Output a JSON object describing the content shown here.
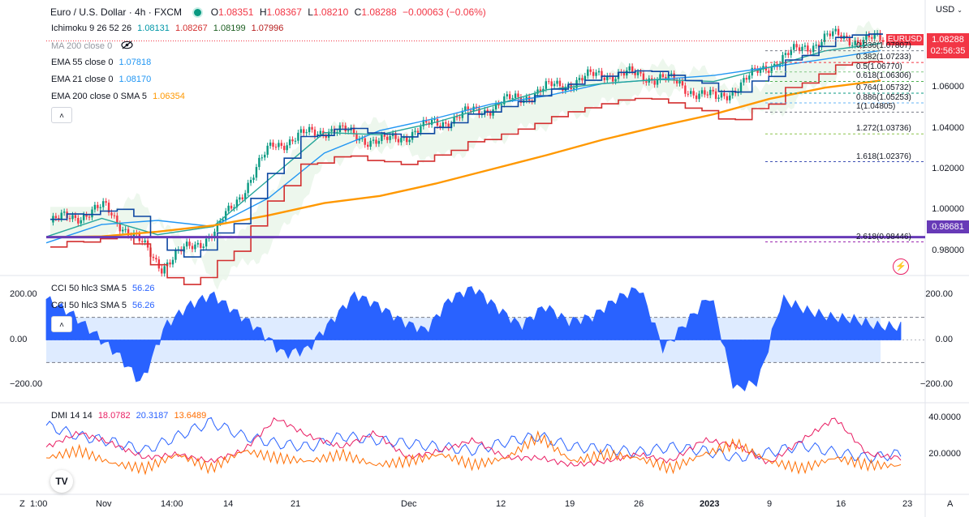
{
  "header": {
    "symbol": "Euro / U.S. Dollar · 4h · FXCM",
    "o_label": "O",
    "o": "1.08351",
    "h_label": "H",
    "h": "1.08367",
    "l_label": "L",
    "l": "1.08210",
    "c_label": "C",
    "c": "1.08288",
    "change": "−0.00063 (−0.06%)",
    "currency": "USD"
  },
  "indicators": {
    "ichimoku": {
      "name": "Ichimoku 9 26 52 26",
      "v1": "1.08131",
      "v2": "1.08267",
      "v3": "1.08199",
      "v4": "1.07996"
    },
    "ma200": {
      "name": "MA 200 close 0"
    },
    "ema55": {
      "name": "EMA 55 close 0",
      "value": "1.07818"
    },
    "ema21": {
      "name": "EMA 21 close 0",
      "value": "1.08170"
    },
    "ema200": {
      "name": "EMA 200 close 0 SMA 5",
      "value": "1.06354"
    },
    "cci_a": {
      "name": "CCI 50 hlc3 SMA 5",
      "value": "56.26"
    },
    "cci_b": {
      "name": "CCI 50 hlc3 SMA 5",
      "value": "56.26"
    },
    "dmi": {
      "name": "DMI 14 14",
      "v1": "18.0782",
      "v2": "20.3187",
      "v3": "13.6489"
    }
  },
  "price_axis": {
    "labels": [
      "1.06000",
      "1.04000",
      "1.02000",
      "1.00000",
      "0.98000"
    ],
    "current": "1.08288",
    "timer": "02:56:35",
    "symbol_tag": "EURUSD",
    "hline": "0.98681"
  },
  "cci_axis": {
    "labels": [
      "200.00",
      "0.00",
      "−200.00"
    ]
  },
  "dmi_axis": {
    "labels": [
      "40.0000",
      "20.0000"
    ]
  },
  "fib_levels": [
    {
      "label": "0.236(1.07807)"
    },
    {
      "label": "0.382(1.07233)"
    },
    {
      "label": "0.5(1.06770)"
    },
    {
      "label": "0.618(1.06306)"
    },
    {
      "label": "0.764(1.05732)"
    },
    {
      "label": "0.886(1.05253)"
    },
    {
      "label": "1(1.04805)"
    },
    {
      "label": "1.272(1.03736)"
    },
    {
      "label": "1.618(1.02376)"
    },
    {
      "label": "2.618(0.98446)"
    }
  ],
  "time_axis": [
    "1:00",
    "Nov",
    "14:00",
    "14",
    "21",
    "Dec",
    "12",
    "19",
    "26",
    "2023",
    "9",
    "16",
    "23"
  ],
  "corner_left": "Z",
  "corner_right": "A",
  "colors": {
    "up": "#089981",
    "down": "#f23645",
    "ema200": "#ff9800",
    "hline": "#673ab7",
    "ema55": "#2196f3",
    "ema21": "#26a69a",
    "kijun": "#d32f2f",
    "tenkan": "#0d47a1",
    "cci_fill": "#2962ff",
    "dmi_plus": "#2962ff",
    "dmi_minus": "#e91e63",
    "adx": "#ff6d00"
  },
  "chart_data": [
    {
      "type": "candlestick",
      "title": "Euro / U.S. Dollar · 4h · FXCM",
      "ylim": [
        0.97,
        1.095
      ],
      "x_range": [
        "Nov",
        "2023-01-22"
      ],
      "series": [
        {
          "name": "EMA 200 close 0 SMA 5",
          "values": [
            0.9868,
            0.9872,
            0.9895,
            0.9925,
            0.9975,
            1.0035,
            1.007,
            1.013,
            1.02,
            1.027,
            1.0345,
            1.041,
            1.047,
            1.0545,
            1.06,
            1.0635
          ]
        },
        {
          "name": "EMA 55 close 0",
          "values": [
            0.984,
            0.993,
            0.995,
            0.992,
            1.006,
            1.028,
            1.039,
            1.045,
            1.052,
            1.056,
            1.062,
            1.064,
            1.066,
            1.07,
            1.074,
            1.0782
          ]
        },
        {
          "name": "EMA 21 close 0",
          "values": [
            0.987,
            0.996,
            0.988,
            0.992,
            1.015,
            1.038,
            1.037,
            1.043,
            1.051,
            1.059,
            1.062,
            1.064,
            1.063,
            1.07,
            1.078,
            1.0817
          ]
        }
      ],
      "close": [
        0.994,
        1.001,
        0.973,
        0.99,
        1.032,
        1.04,
        1.033,
        1.043,
        1.051,
        1.06,
        1.067,
        1.065,
        1.054,
        1.072,
        1.085,
        1.0829
      ],
      "hline": 0.98681
    },
    {
      "type": "area",
      "title": "CCI 50 hlc3 SMA 5",
      "ylim": [
        -260,
        260
      ],
      "bands": [
        100,
        -100
      ],
      "values": [
        180,
        120,
        30,
        -60,
        -190,
        60,
        150,
        200,
        120,
        40,
        -60,
        -40,
        80,
        200,
        150,
        80,
        40,
        180,
        230,
        140,
        60,
        150,
        80,
        100,
        180,
        230,
        -40,
        80,
        200,
        -220,
        -180,
        180,
        130,
        100,
        90,
        60,
        56.26
      ]
    },
    {
      "type": "line",
      "title": "DMI 14 14",
      "ylim": [
        0,
        45
      ],
      "series": [
        {
          "name": "+DI",
          "values": [
            36,
            30,
            27,
            22,
            30,
            38,
            30,
            26,
            24,
            30,
            28,
            26,
            24,
            22,
            27,
            30,
            24,
            23,
            21,
            24,
            22,
            18,
            21,
            25,
            21,
            18,
            20.3187
          ]
        },
        {
          "name": "-DI",
          "values": [
            24,
            32,
            26,
            18,
            20,
            16,
            22,
            40,
            30,
            24,
            32,
            18,
            22,
            28,
            18,
            18,
            14,
            16,
            20,
            16,
            28,
            25,
            15,
            28,
            40,
            20,
            18.0782
          ]
        },
        {
          "name": "ADX",
          "values": [
            18,
            22,
            15,
            12,
            20,
            12,
            22,
            18,
            16,
            20,
            14,
            16,
            20,
            14,
            18,
            30,
            16,
            20,
            18,
            12,
            20,
            26,
            16,
            12,
            18,
            14,
            13.6489
          ]
        }
      ]
    }
  ]
}
